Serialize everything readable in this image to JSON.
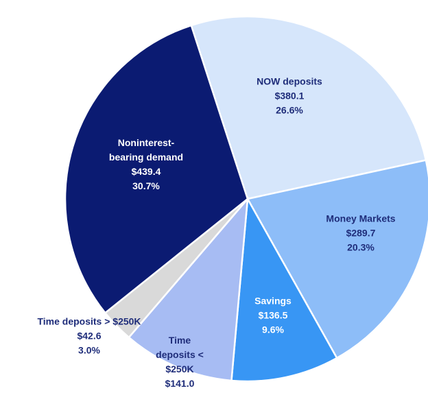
{
  "chart_data": {
    "type": "pie",
    "categories": [
      "NOW deposits",
      "Money Markets",
      "Savings",
      "Time deposits < $250K",
      "Time deposits > $250K",
      "Noninterest-bearing demand"
    ],
    "values": [
      380.1,
      289.7,
      136.5,
      141.0,
      42.6,
      439.4
    ],
    "value_labels": [
      "$380.1",
      "$289.7",
      "$136.5",
      "$141.0",
      "$42.6",
      "$439.4"
    ],
    "percents": [
      26.6,
      20.3,
      9.6,
      null,
      3.0,
      30.7
    ],
    "percent_labels": [
      "26.6%",
      "20.3%",
      "9.6%",
      null,
      "3.0%",
      "30.7%"
    ],
    "colors": [
      "#d6e6fb",
      "#8dbdf8",
      "#3896f4",
      "#a7bcf3",
      "#d9d9d9",
      "#0b1b72"
    ]
  }
}
